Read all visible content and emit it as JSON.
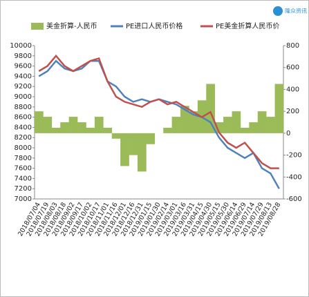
{
  "logo_text": "隆众资讯",
  "chart_data": {
    "type": "combo",
    "categories": [
      "2018/07/04",
      "2018/07/19",
      "2018/08/03",
      "2018/08/18",
      "2018/09/02",
      "2018/09/17",
      "2018/10/02",
      "2018/10/17",
      "2018/11/01",
      "2018/11/16",
      "2018/12/01",
      "2018/12/16",
      "2018/12/31",
      "2019/01/15",
      "2019/01/30",
      "2019/02/14",
      "2019/03/01",
      "2019/03/16",
      "2019/03/31",
      "2019/04/15",
      "2019/04/30",
      "2019/05/15",
      "2019/05/30",
      "2019/06/14",
      "2019/06/29",
      "2019/07/14",
      "2019/07/29",
      "2019/08/13",
      "2019/08/28"
    ],
    "series": [
      {
        "name": "美金折算-人民币",
        "type": "bar",
        "axis": "y2",
        "color": "#9bbb59",
        "values": [
          200,
          150,
          50,
          100,
          150,
          100,
          50,
          150,
          50,
          -50,
          -300,
          -200,
          -350,
          -100,
          0,
          50,
          150,
          250,
          200,
          300,
          450,
          100,
          150,
          200,
          50,
          100,
          200,
          150,
          450
        ]
      },
      {
        "name": "PE进口人民币价格",
        "type": "line",
        "color": "#4f81bd",
        "values": [
          9400,
          9500,
          9700,
          9550,
          9500,
          9550,
          9700,
          9700,
          9300,
          9200,
          9000,
          8900,
          8950,
          8900,
          8950,
          8900,
          8850,
          8750,
          8650,
          8600,
          8500,
          8200,
          8000,
          7900,
          7800,
          7900,
          7600,
          7500,
          7200
        ]
      },
      {
        "name": "PE美金折算人民币价",
        "type": "line",
        "color": "#c0504d",
        "values": [
          9500,
          9600,
          9800,
          9600,
          9500,
          9600,
          9700,
          9750,
          9300,
          9000,
          8900,
          8850,
          8800,
          8900,
          8950,
          8850,
          8900,
          8800,
          8700,
          8600,
          8700,
          8300,
          8100,
          8000,
          8100,
          7900,
          7700,
          7600,
          7600
        ]
      }
    ],
    "ylim": [
      7000,
      10000
    ],
    "yticks": [
      7000,
      7200,
      7400,
      7600,
      7800,
      8000,
      8200,
      8400,
      8600,
      8800,
      9000,
      9200,
      9400,
      9600,
      9800,
      10000
    ],
    "y2lim": [
      -600,
      800
    ],
    "y2ticks": [
      -600,
      -400,
      -200,
      0,
      200,
      400,
      600,
      800
    ],
    "legend": "top"
  }
}
